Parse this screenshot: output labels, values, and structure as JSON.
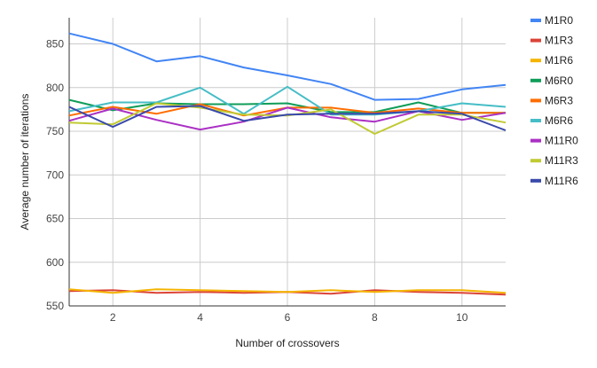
{
  "chart_data": {
    "type": "line",
    "title": "",
    "xlabel": "Number of crossovers",
    "ylabel": "Average number of iterations",
    "xlim": [
      1,
      11
    ],
    "ylim": [
      550,
      880
    ],
    "x_ticks": [
      2,
      4,
      6,
      8,
      10
    ],
    "y_ticks": [
      550,
      600,
      650,
      700,
      750,
      800,
      850
    ],
    "grid": true,
    "legend_position": "right",
    "x": [
      1,
      2,
      3,
      4,
      5,
      6,
      7,
      8,
      9,
      10,
      11
    ],
    "series": [
      {
        "name": "M1R0",
        "color": "#4285f4",
        "values": [
          862,
          850,
          830,
          836,
          823,
          814,
          804,
          786,
          787,
          798,
          803
        ]
      },
      {
        "name": "M1R3",
        "color": "#db4437",
        "values": [
          567,
          568,
          565,
          566,
          565,
          566,
          564,
          568,
          566,
          565,
          563
        ]
      },
      {
        "name": "M1R6",
        "color": "#f4b400",
        "values": [
          569,
          565,
          569,
          568,
          567,
          566,
          568,
          566,
          568,
          568,
          565
        ]
      },
      {
        "name": "M6R0",
        "color": "#0f9d58",
        "values": [
          786,
          774,
          782,
          781,
          781,
          782,
          772,
          772,
          783,
          771,
          771
        ]
      },
      {
        "name": "M6R3",
        "color": "#ff6d00",
        "values": [
          768,
          778,
          770,
          781,
          768,
          777,
          777,
          771,
          776,
          771,
          771
        ]
      },
      {
        "name": "M6R6",
        "color": "#46bdc6",
        "values": [
          773,
          783,
          783,
          800,
          770,
          801,
          769,
          769,
          773,
          782,
          778
        ]
      },
      {
        "name": "M11R0",
        "color": "#ab30c4",
        "values": [
          762,
          776,
          763,
          752,
          761,
          777,
          766,
          761,
          773,
          763,
          771
        ]
      },
      {
        "name": "M11R3",
        "color": "#c0ca33",
        "values": [
          760,
          758,
          782,
          777,
          769,
          768,
          775,
          747,
          769,
          769,
          760
        ]
      },
      {
        "name": "M11R6",
        "color": "#3949ab",
        "values": [
          778,
          755,
          778,
          779,
          762,
          769,
          770,
          770,
          773,
          770,
          751
        ]
      }
    ]
  }
}
